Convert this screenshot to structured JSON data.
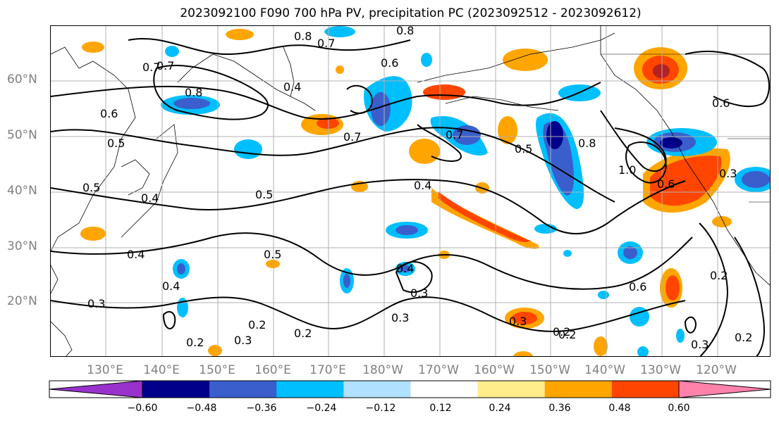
{
  "title": "2023092100 F090 700 hPa PV, precipitation PC (2023092512 - 2023092612)",
  "lat_labels": [
    "60°N",
    "50°N",
    "40°N",
    "30°N",
    "20°N"
  ],
  "lon_labels": [
    "130°E",
    "140°E",
    "150°E",
    "160°E",
    "170°E",
    "180°W",
    "170°W",
    "160°W",
    "150°W",
    "140°W",
    "130°W",
    "120°W"
  ],
  "colorbar": {
    "ticks": [
      "−0.60",
      "−0.48",
      "−0.36",
      "−0.24",
      "−0.12",
      "0.12",
      "0.24",
      "0.36",
      "0.48",
      "0.60"
    ],
    "colors": [
      "#9932cc",
      "#00008b",
      "#3a5fcd",
      "#00bfff",
      "#b0e2ff",
      "#ffffff",
      "#ffec8b",
      "#ffa500",
      "#ff4500",
      "#b22222",
      "#ff82ab"
    ]
  },
  "contour_labels": [
    "0.8",
    "0.7",
    "0.8",
    "0.7",
    "0.6",
    "0.8",
    "0.7",
    "0.6",
    "0.5",
    "0.4",
    "0.5",
    "0.4",
    "0.5",
    "0.4",
    "0.3",
    "0.4",
    "0.3",
    "0.2",
    "0.2",
    "0.3",
    "0.3",
    "0.2",
    "0.7",
    "0.5",
    "0.4",
    "0.5",
    "0.8",
    "1.0",
    "0.6",
    "0.6",
    "0.3",
    "0.2",
    "0.6",
    "0.2",
    "0.3",
    "0.2",
    "0.7",
    "0.3",
    "0.4",
    "0.2"
  ]
}
